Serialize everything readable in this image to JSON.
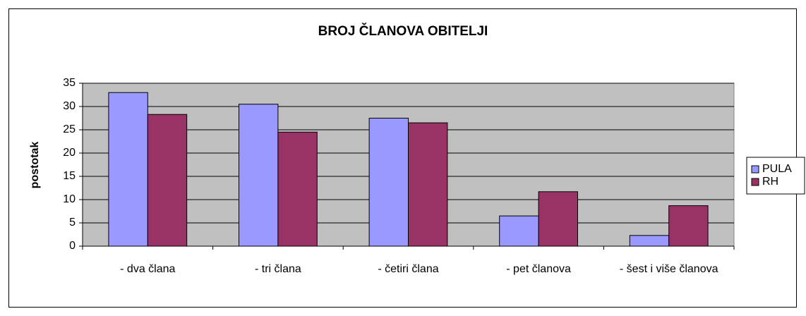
{
  "chart_data": {
    "type": "bar",
    "title": "BROJ ČLANOVA OBITELJI",
    "y_label": "postotak",
    "categories": [
      "- dva člana",
      "- tri člana",
      "- četiri člana",
      "- pet članova",
      "- šest i više članova"
    ],
    "series": [
      {
        "name": "PULA",
        "color": "#9999ff",
        "values": [
          33,
          30.5,
          27.5,
          6.5,
          2.3
        ]
      },
      {
        "name": "RH",
        "color": "#993366",
        "values": [
          28.3,
          24.5,
          26.5,
          11.7,
          8.7
        ]
      }
    ],
    "ylim": [
      0,
      35
    ],
    "yticks": [
      0,
      5,
      10,
      15,
      20,
      25,
      30,
      35
    ],
    "grid": true,
    "legend": "right"
  }
}
